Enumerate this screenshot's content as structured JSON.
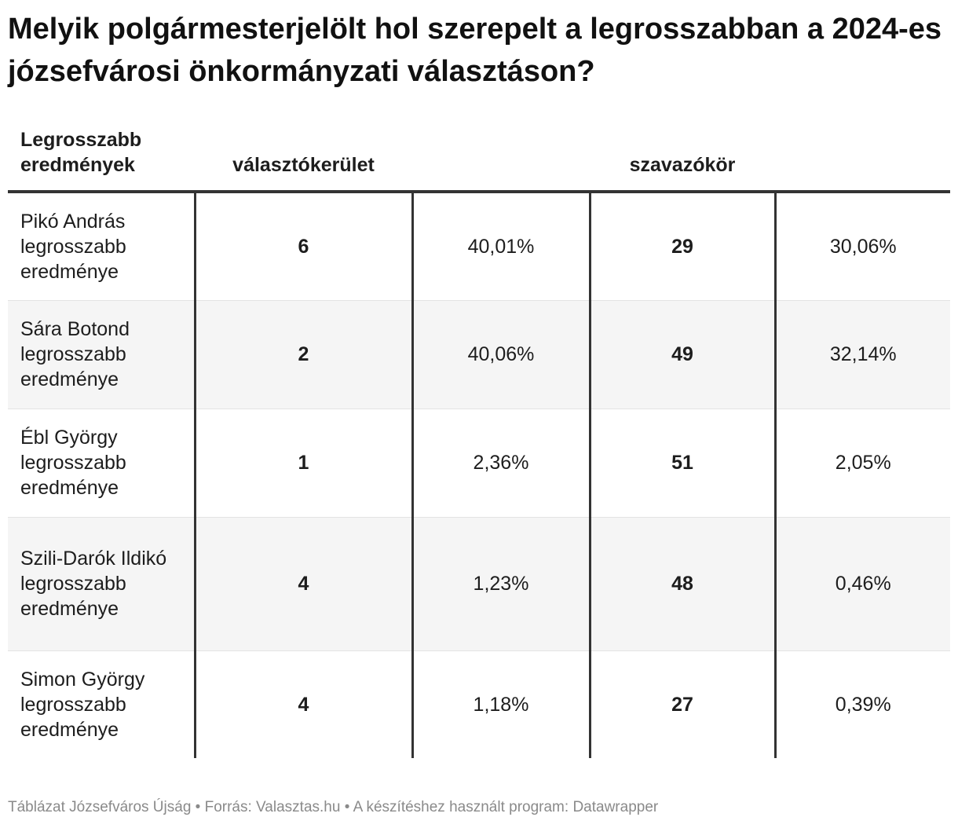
{
  "header": {
    "title": "Melyik polgármesterjelölt hol szerepelt a legrosszabban a 2024-es józsefvárosi önkormányzati választáson?"
  },
  "table": {
    "columns": [
      "Legrosszabb eredmények",
      "választókerület",
      "szavazókör"
    ],
    "rows": [
      [
        "Pikó András legrosszabb eredménye",
        "6",
        "40,01%",
        "29",
        "30,06%"
      ],
      [
        "Sára Botond legrosszabb eredménye",
        "2",
        "40,06%",
        "49",
        "32,14%"
      ],
      [
        "Ébl György legrosszabb eredménye",
        "1",
        "2,36%",
        "51",
        "2,05%"
      ],
      [
        "Szili-Darók Ildikó legrosszabb eredménye",
        "4",
        "1,23%",
        "48",
        "0,46%"
      ],
      [
        "Simon György legrosszabb eredménye",
        "4",
        "1,18%",
        "27",
        "0,39%"
      ]
    ]
  },
  "footer": {
    "text": "Táblázat Józsefváros Újság • Forrás: Valasztas.hu • A készítéshez használt program: Datawrapper"
  }
}
